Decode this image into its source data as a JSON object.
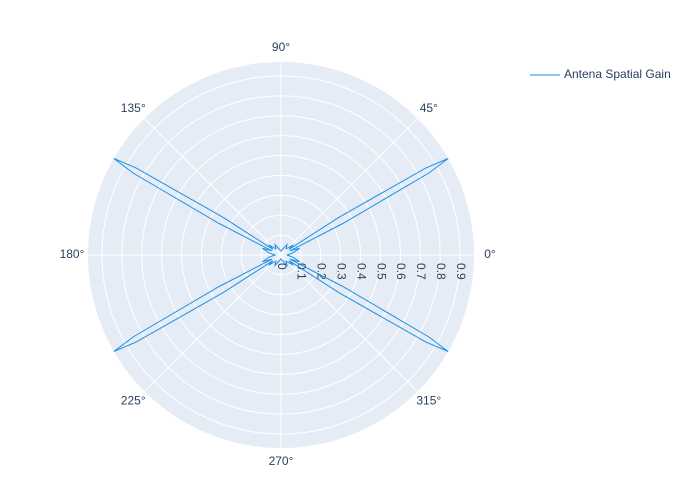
{
  "chart_data": {
    "type": "polar-line",
    "theta": [
      0,
      10,
      20,
      25,
      27,
      29,
      30,
      31,
      33,
      35,
      40,
      50,
      60,
      75,
      90,
      105,
      120,
      130,
      140,
      145,
      147,
      149,
      150,
      151,
      153,
      155,
      160,
      170,
      180,
      190,
      200,
      205,
      207,
      209,
      210,
      211,
      213,
      215,
      220,
      230,
      240,
      255,
      270,
      285,
      300,
      310,
      320,
      325,
      327,
      329,
      330,
      331,
      333,
      335,
      340,
      350,
      360
    ],
    "series": [
      {
        "name": "Antena Spatial Gain",
        "color": "#1e90e6",
        "values": [
          0.03,
          0.06,
          0.1,
          0.05,
          0.35,
          0.85,
          0.97,
          0.85,
          0.35,
          0.05,
          0.08,
          0.04,
          0.06,
          0.03,
          0.02,
          0.03,
          0.06,
          0.04,
          0.08,
          0.05,
          0.35,
          0.85,
          0.97,
          0.85,
          0.35,
          0.05,
          0.1,
          0.06,
          0.03,
          0.06,
          0.1,
          0.05,
          0.35,
          0.85,
          0.97,
          0.85,
          0.35,
          0.05,
          0.08,
          0.04,
          0.06,
          0.03,
          0.02,
          0.03,
          0.06,
          0.04,
          0.08,
          0.05,
          0.35,
          0.85,
          0.97,
          0.85,
          0.35,
          0.05,
          0.1,
          0.06,
          0.03
        ]
      }
    ],
    "rlim": [
      0,
      0.97
    ],
    "rticks": [
      0,
      0.1,
      0.2,
      0.3,
      0.4,
      0.5,
      0.6,
      0.7,
      0.8,
      0.9
    ],
    "thetaticks": [
      {
        "value": 0,
        "label": "0°"
      },
      {
        "value": 45,
        "label": "45°"
      },
      {
        "value": 90,
        "label": "90°"
      },
      {
        "value": 135,
        "label": "135°"
      },
      {
        "value": 180,
        "label": "180°"
      },
      {
        "value": 225,
        "label": "225°"
      },
      {
        "value": 270,
        "label": "270°"
      },
      {
        "value": 315,
        "label": "315°"
      }
    ],
    "grid": true,
    "legend": "top-right"
  }
}
